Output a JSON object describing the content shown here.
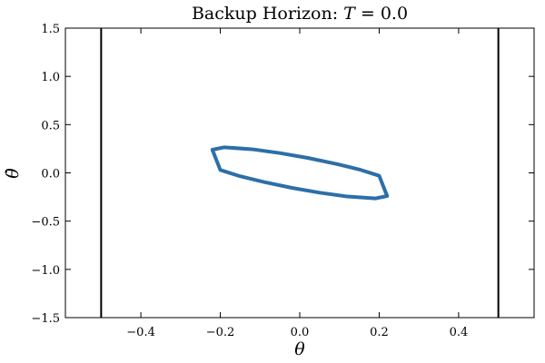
{
  "chart_data": {
    "type": "line",
    "title_prefix": "Backup Horizon: ",
    "title_var": "T",
    "title_eq": " = 0.0",
    "xlabel": "θ",
    "ylabel": "θ̇",
    "xlim": [
      -0.59,
      0.59
    ],
    "ylim": [
      -1.5,
      1.5
    ],
    "xticks": [
      -0.4,
      -0.2,
      0.0,
      0.2,
      0.4
    ],
    "xtick_labels": [
      "−0.4",
      "−0.2",
      "0.0",
      "0.2",
      "0.4"
    ],
    "yticks": [
      -1.5,
      -1.0,
      -0.5,
      0.0,
      0.5,
      1.0,
      1.5
    ],
    "ytick_labels": [
      "−1.5",
      "−1.0",
      "−0.5",
      "0.0",
      "0.5",
      "1.0",
      "1.5"
    ],
    "grid": false,
    "vertical_lines": [
      {
        "x": -0.5,
        "color": "#000000"
      },
      {
        "x": 0.5,
        "color": "#000000"
      }
    ],
    "series": [
      {
        "color": "#2c6fa8",
        "shape": "ellipse",
        "center": [
          0.0,
          0.0
        ],
        "points": [
          [
            -0.22,
            0.24
          ],
          [
            -0.19,
            0.265
          ],
          [
            -0.12,
            0.245
          ],
          [
            -0.05,
            0.205
          ],
          [
            0.02,
            0.155
          ],
          [
            0.09,
            0.095
          ],
          [
            0.15,
            0.035
          ],
          [
            0.2,
            -0.03
          ],
          [
            0.22,
            -0.24
          ],
          [
            0.19,
            -0.265
          ],
          [
            0.12,
            -0.245
          ],
          [
            0.05,
            -0.205
          ],
          [
            -0.02,
            -0.155
          ],
          [
            -0.09,
            -0.095
          ],
          [
            -0.15,
            -0.035
          ],
          [
            -0.2,
            0.03
          ],
          [
            -0.22,
            0.24
          ]
        ]
      }
    ]
  }
}
